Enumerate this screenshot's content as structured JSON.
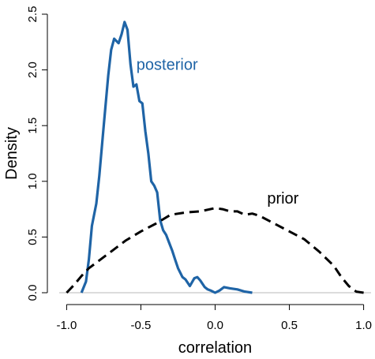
{
  "chart_data": {
    "type": "line",
    "xlabel": "correlation",
    "ylabel": "Density",
    "xlim": [
      -1.05,
      1.05
    ],
    "ylim": [
      0,
      2.5
    ],
    "xticks": [
      "-1.0",
      "-0.5",
      "0.0",
      "0.5",
      "1.0"
    ],
    "yticks": [
      "0.0",
      "0.5",
      "1.0",
      "1.5",
      "2.0",
      "2.5"
    ],
    "grid": false,
    "baseline": 0,
    "series": [
      {
        "name": "posterior",
        "color": "#1f64a6",
        "style": "solid",
        "label_at": [
          -0.53,
          2.0
        ],
        "x": [
          -0.9,
          -0.87,
          -0.85,
          -0.83,
          -0.8,
          -0.78,
          -0.75,
          -0.72,
          -0.7,
          -0.68,
          -0.65,
          -0.63,
          -0.61,
          -0.59,
          -0.57,
          -0.55,
          -0.53,
          -0.51,
          -0.49,
          -0.47,
          -0.45,
          -0.43,
          -0.41,
          -0.39,
          -0.37,
          -0.35,
          -0.33,
          -0.31,
          -0.29,
          -0.27,
          -0.25,
          -0.22,
          -0.2,
          -0.17,
          -0.14,
          -0.12,
          -0.1,
          -0.07,
          -0.05,
          -0.03,
          0.0,
          0.03,
          0.06,
          0.1,
          0.15,
          0.2,
          0.25
        ],
        "y": [
          0.0,
          0.1,
          0.3,
          0.6,
          0.8,
          1.05,
          1.5,
          1.95,
          2.18,
          2.28,
          2.24,
          2.32,
          2.43,
          2.36,
          2.05,
          1.85,
          1.87,
          1.72,
          1.7,
          1.45,
          1.25,
          1.0,
          0.96,
          0.9,
          0.65,
          0.56,
          0.52,
          0.45,
          0.38,
          0.3,
          0.22,
          0.14,
          0.12,
          0.06,
          0.13,
          0.14,
          0.11,
          0.05,
          0.03,
          0.02,
          0.0,
          0.02,
          0.05,
          0.04,
          0.03,
          0.01,
          0.0
        ]
      },
      {
        "name": "prior",
        "color": "#000000",
        "style": "dashed",
        "label_at": [
          0.35,
          0.8
        ],
        "x": [
          -1.0,
          -0.95,
          -0.9,
          -0.85,
          -0.8,
          -0.7,
          -0.6,
          -0.5,
          -0.4,
          -0.3,
          -0.2,
          -0.1,
          0.0,
          0.05,
          0.1,
          0.15,
          0.2,
          0.25,
          0.3,
          0.4,
          0.5,
          0.6,
          0.7,
          0.8,
          0.85,
          0.9,
          0.95,
          1.0
        ],
        "y": [
          0.0,
          0.07,
          0.15,
          0.22,
          0.27,
          0.37,
          0.47,
          0.55,
          0.62,
          0.7,
          0.72,
          0.73,
          0.76,
          0.75,
          0.73,
          0.73,
          0.7,
          0.71,
          0.69,
          0.62,
          0.55,
          0.48,
          0.37,
          0.24,
          0.14,
          0.06,
          0.01,
          0.0
        ]
      }
    ]
  }
}
